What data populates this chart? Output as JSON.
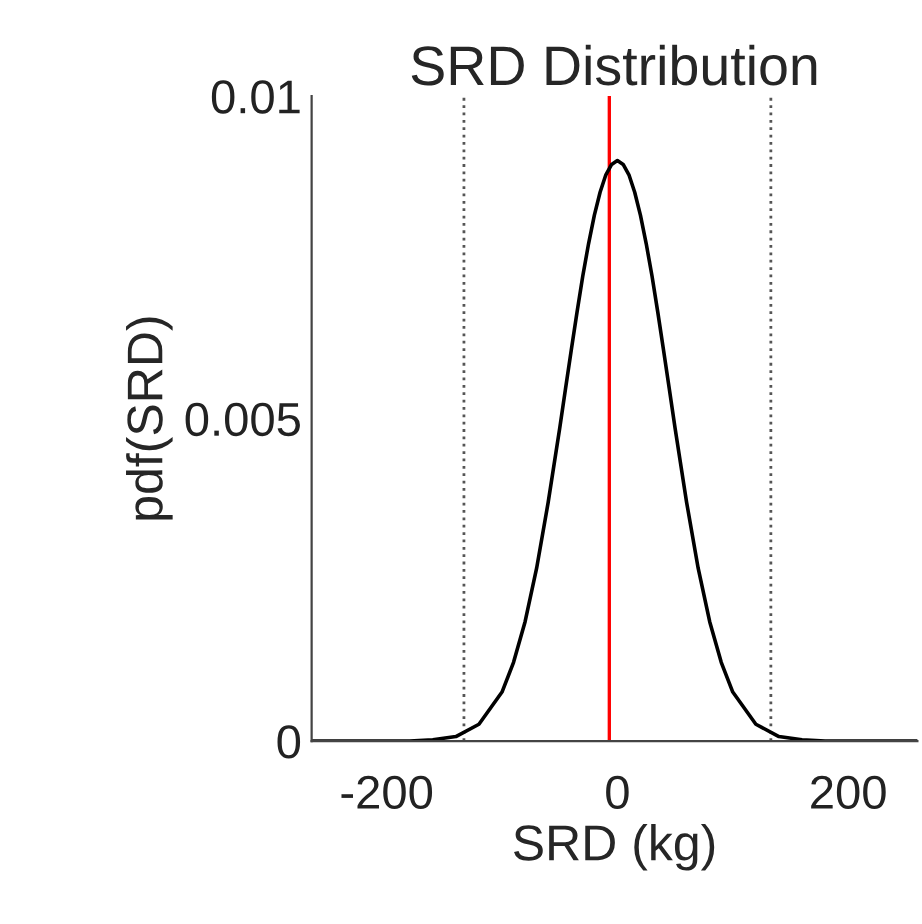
{
  "chart_data": {
    "type": "line",
    "title": "SRD Distribution",
    "xlabel": "SRD (kg)",
    "ylabel": "pdf(SRD)",
    "x": [
      -265,
      -200,
      -180,
      -160,
      -140,
      -120,
      -100,
      -90,
      -80,
      -70,
      -60,
      -50,
      -45,
      -40,
      -35,
      -30,
      -25,
      -20,
      -15,
      -10,
      -5,
      0,
      5,
      10,
      15,
      20,
      25,
      30,
      35,
      40,
      45,
      50,
      60,
      70,
      80,
      90,
      100,
      120,
      140,
      160,
      180,
      200,
      260
    ],
    "series": [
      {
        "color": "#000000",
        "values": [
          0,
          0,
          0,
          2e-05,
          7e-05,
          0.00026,
          0.00076,
          0.00122,
          0.00185,
          0.00268,
          0.0037,
          0.00485,
          0.00546,
          0.00606,
          0.00665,
          0.00721,
          0.00771,
          0.00815,
          0.00851,
          0.00878,
          0.00894,
          0.009,
          0.00894,
          0.00878,
          0.00851,
          0.00815,
          0.00771,
          0.00721,
          0.00665,
          0.00606,
          0.00546,
          0.00485,
          0.0037,
          0.00268,
          0.00185,
          0.00122,
          0.00076,
          0.00026,
          7e-05,
          2e-05,
          0,
          0,
          0
        ]
      }
    ],
    "xlim": [
      -265,
      260
    ],
    "ylim": [
      0,
      0.01
    ],
    "xticks": [
      -200,
      0,
      200
    ],
    "yticks": [
      0,
      0.005,
      0.01
    ],
    "ref_lines": [
      {
        "axis": "x",
        "value": -7,
        "color": "#ff0000",
        "line_style": "solid"
      },
      {
        "axis": "x",
        "value": -133,
        "color": "#555555",
        "line_style": "dotted"
      },
      {
        "axis": "x",
        "value": 133,
        "color": "#555555",
        "line_style": "dotted"
      }
    ],
    "grid": false,
    "legend": false
  }
}
